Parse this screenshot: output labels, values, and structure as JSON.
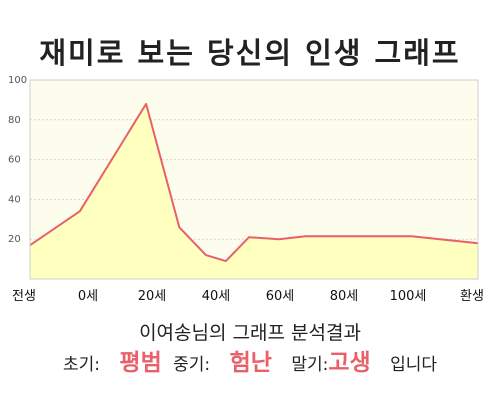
{
  "title": "재미로 보는 당신의 인생 그래프",
  "chart_data": {
    "type": "area",
    "x_ticks": [
      "전생",
      "0세",
      "20세",
      "40세",
      "60세",
      "80세",
      "100세",
      "환생"
    ],
    "x": [
      -15,
      0,
      20,
      30,
      38,
      44,
      51,
      60,
      68,
      78,
      100,
      120
    ],
    "values": [
      17,
      34,
      88,
      26,
      12,
      9,
      21,
      20,
      21.5,
      21.5,
      21.5,
      18
    ],
    "ylim": [
      0,
      100
    ],
    "yticks": [
      20,
      40,
      60,
      80,
      100
    ],
    "grid": true,
    "colors": {
      "line": "#e8606a",
      "fill": "#ffffc0",
      "plot_bg": "#fdfdee",
      "grid": "#d8d8c8"
    }
  },
  "summary": "이여송님의 그래프 분석결과",
  "result": {
    "early_label": "초기:",
    "early_value": "평범",
    "mid_label": "중기:",
    "mid_value": "험난",
    "late_label": "말기:",
    "late_value": "고생",
    "ending": "입니다"
  }
}
